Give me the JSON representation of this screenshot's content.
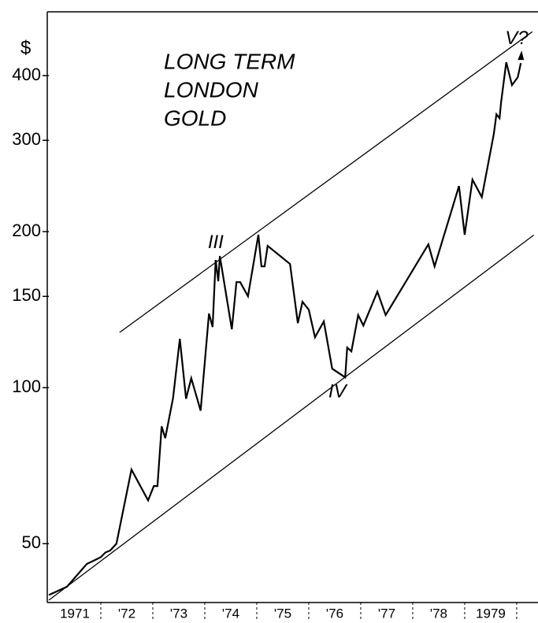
{
  "chart_data": {
    "type": "line",
    "title": [
      "LONG TERM",
      "LONDON",
      "GOLD"
    ],
    "y_unit_label": "$",
    "log_scale_y": true,
    "xlim": [
      1971,
      1980.41
    ],
    "ylim": [
      38.5,
      531
    ],
    "yticks": [
      50,
      100,
      150,
      200,
      300,
      400
    ],
    "xticks": [
      1972,
      1973,
      1974,
      1975,
      1976,
      1977,
      1978,
      1979,
      1980
    ],
    "year_labels": [
      "1971",
      "'72",
      "'73",
      "'74",
      "'75",
      "'76",
      "'77",
      "'78",
      "1979"
    ],
    "series": [
      {
        "color": "#000000",
        "x": [
          1971.0,
          1971.35,
          1971.73,
          1971.85,
          1972.0,
          1972.09,
          1972.18,
          1972.3,
          1972.59,
          1972.91,
          1973.02,
          1973.09,
          1973.17,
          1973.24,
          1973.39,
          1973.52,
          1973.64,
          1973.74,
          1973.92,
          1974.08,
          1974.15,
          1974.21,
          1974.26,
          1974.29,
          1974.52,
          1974.61,
          1974.68,
          1974.83,
          1975.03,
          1975.09,
          1975.15,
          1975.21,
          1975.64,
          1975.79,
          1975.88,
          1976.0,
          1976.12,
          1976.29,
          1976.45,
          1976.7,
          1976.74,
          1976.82,
          1976.95,
          1977.05,
          1977.32,
          1977.48,
          1978.3,
          1978.42,
          1978.89,
          1979.0,
          1979.15,
          1979.33,
          1979.56,
          1979.61,
          1979.67,
          1979.7,
          1979.8,
          1979.91,
          1980.02,
          1980.08
        ],
        "values": [
          39.8,
          41.3,
          45.7,
          46.3,
          47.1,
          48.1,
          48.5,
          50.0,
          69.5,
          60.6,
          64.6,
          64.6,
          84.2,
          79.9,
          95.5,
          124.2,
          95.2,
          104.3,
          90.3,
          139.0,
          130.9,
          176.3,
          160.4,
          179.4,
          129.6,
          159.8,
          159.8,
          150.1,
          197.2,
          171.4,
          171.4,
          187.7,
          173.2,
          133.2,
          146.4,
          141.4,
          125.1,
          134.2,
          108.8,
          104.7,
          119.5,
          117.5,
          138.0,
          131.8,
          153.2,
          138.0,
          189.0,
          171.4,
          244.9,
          197.2,
          251.9,
          233.2,
          308.6,
          336.8,
          331.0,
          354.9,
          424.4,
          383.4,
          397.0,
          422.8
        ]
      },
      {
        "color": "#000000",
        "x": [
          1972.36,
          1980.3
        ],
        "values": [
          127.8,
          486
        ]
      },
      {
        "color": "#000000",
        "x": [
          1971.0,
          1980.33
        ],
        "values": [
          38.9,
          197
        ]
      }
    ],
    "annotations": [
      {
        "text": "III",
        "x": 1974.21,
        "y": 190
      },
      {
        "text": "IV",
        "x": 1976.55,
        "y": 98
      },
      {
        "text": "V?",
        "x": 1980.0,
        "y": 470
      }
    ]
  }
}
